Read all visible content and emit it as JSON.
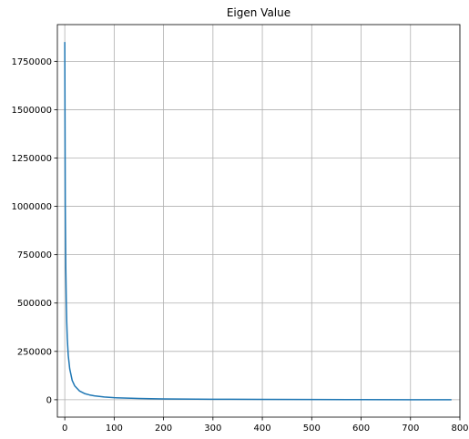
{
  "chart_data": {
    "type": "line",
    "title": "Eigen Value",
    "xlabel": "",
    "ylabel": "",
    "xlim": [
      -15,
      800
    ],
    "ylim": [
      -90000,
      1940000
    ],
    "x_ticks": [
      0,
      100,
      200,
      300,
      400,
      500,
      600,
      700,
      800
    ],
    "y_ticks": [
      0,
      250000,
      500000,
      750000,
      1000000,
      1250000,
      1500000,
      1750000
    ],
    "grid": true,
    "legend": "none",
    "line_color": "#1f77b4",
    "series": [
      {
        "x": [
          0,
          1,
          2,
          3,
          4,
          5,
          7,
          10,
          15,
          20,
          30,
          40,
          50,
          60,
          80,
          100,
          150,
          200,
          300,
          400,
          500,
          600,
          700,
          783
        ],
        "y": [
          1850000,
          1000000,
          690000,
          510000,
          400000,
          320000,
          230000,
          160000,
          100000,
          72000,
          45000,
          32000,
          25000,
          20000,
          14000,
          10500,
          6500,
          4500,
          2500,
          1600,
          1000,
          600,
          300,
          100
        ]
      }
    ]
  }
}
